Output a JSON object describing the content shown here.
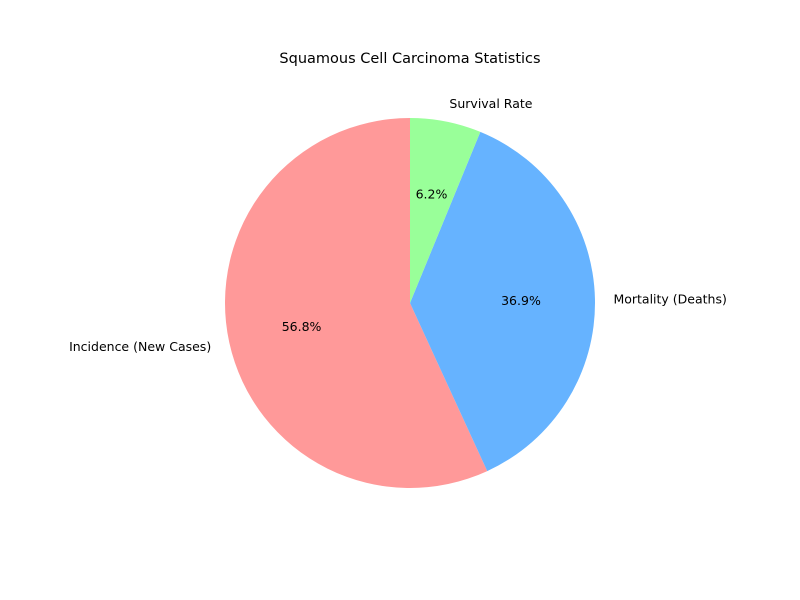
{
  "chart_data": {
    "type": "pie",
    "title": "Squamous Cell Carcinoma Statistics",
    "labels": [
      "Incidence (New Cases)",
      "Mortality (Deaths)",
      "Survival Rate"
    ],
    "values": [
      56.8,
      36.9,
      6.2
    ],
    "percent_labels": [
      "56.8%",
      "36.9%",
      "6.2%"
    ],
    "colors": [
      "#ff9999",
      "#66b3ff",
      "#99ff99"
    ],
    "start_angle_deg": 90,
    "direction": "counterclockwise",
    "legend": "none"
  }
}
